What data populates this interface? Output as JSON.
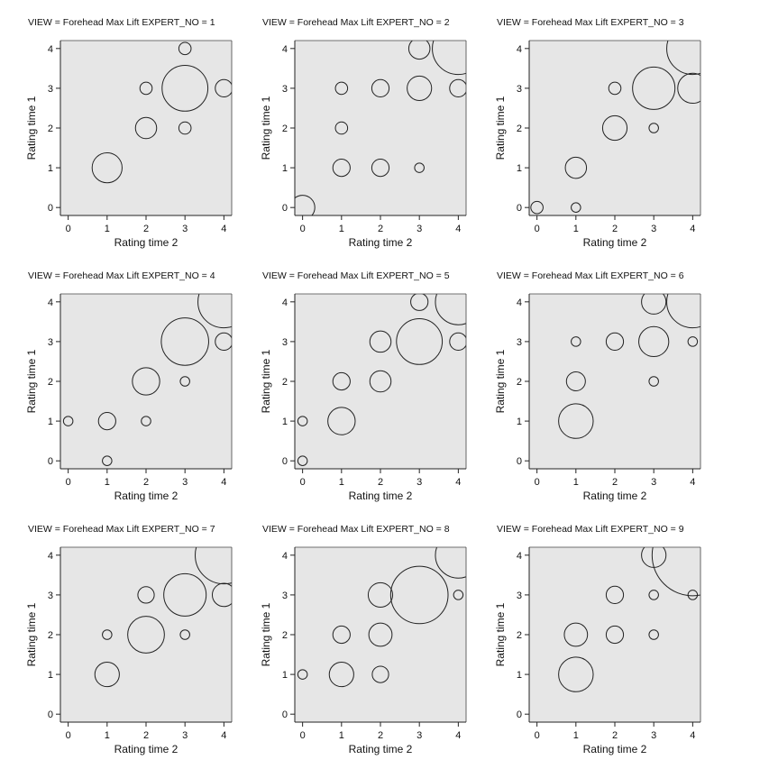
{
  "chart_data": [
    {
      "type": "scatter",
      "title": "VIEW = Forehead Max Lift EXPERT_NO = 1",
      "xlabel": "Rating time 2",
      "ylabel": "Rating time 1",
      "xlim": [
        -0.2,
        4.2
      ],
      "ylim": [
        -0.2,
        4.2
      ],
      "xticks": [
        "0",
        "1",
        "2",
        "3",
        "4"
      ],
      "yticks": [
        "0",
        "1",
        "2",
        "3",
        "4"
      ],
      "points": [
        {
          "x": 1,
          "y": 1,
          "size": 3
        },
        {
          "x": 2,
          "y": 2,
          "size": 1.5
        },
        {
          "x": 2,
          "y": 3,
          "size": 0.5
        },
        {
          "x": 3,
          "y": 2,
          "size": 0.5
        },
        {
          "x": 3,
          "y": 3,
          "size": 7
        },
        {
          "x": 3,
          "y": 4,
          "size": 0.5
        },
        {
          "x": 4,
          "y": 3,
          "size": 1
        }
      ]
    },
    {
      "type": "scatter",
      "title": "VIEW = Forehead Max Lift EXPERT_NO = 2",
      "xlabel": "Rating time 2",
      "ylabel": "Rating time 1",
      "xlim": [
        -0.2,
        4.2
      ],
      "ylim": [
        -0.2,
        4.2
      ],
      "xticks": [
        "0",
        "1",
        "2",
        "3",
        "4"
      ],
      "yticks": [
        "0",
        "1",
        "2",
        "3",
        "4"
      ],
      "points": [
        {
          "x": 0,
          "y": 0,
          "size": 2
        },
        {
          "x": 1,
          "y": 1,
          "size": 1
        },
        {
          "x": 1,
          "y": 2,
          "size": 0.5
        },
        {
          "x": 1,
          "y": 3,
          "size": 0.5
        },
        {
          "x": 2,
          "y": 1,
          "size": 1
        },
        {
          "x": 2,
          "y": 3,
          "size": 1
        },
        {
          "x": 3,
          "y": 1,
          "size": 0.3
        },
        {
          "x": 3,
          "y": 3,
          "size": 2
        },
        {
          "x": 3,
          "y": 4,
          "size": 1.5
        },
        {
          "x": 4,
          "y": 3,
          "size": 1
        },
        {
          "x": 4,
          "y": 4,
          "size": 9
        }
      ]
    },
    {
      "type": "scatter",
      "title": "VIEW = Forehead Max Lift EXPERT_NO = 3",
      "xlabel": "Rating time 2",
      "ylabel": "Rating time 1",
      "xlim": [
        -0.2,
        4.2
      ],
      "ylim": [
        -0.2,
        4.2
      ],
      "xticks": [
        "0",
        "1",
        "2",
        "3",
        "4"
      ],
      "yticks": [
        "0",
        "1",
        "2",
        "3",
        "4"
      ],
      "points": [
        {
          "x": 0,
          "y": 0,
          "size": 0.5
        },
        {
          "x": 1,
          "y": 0,
          "size": 0.3
        },
        {
          "x": 1,
          "y": 1,
          "size": 1.5
        },
        {
          "x": 2,
          "y": 2,
          "size": 2
        },
        {
          "x": 2,
          "y": 3,
          "size": 0.5
        },
        {
          "x": 3,
          "y": 2,
          "size": 0.3
        },
        {
          "x": 3,
          "y": 3,
          "size": 6
        },
        {
          "x": 4,
          "y": 3,
          "size": 3
        },
        {
          "x": 4,
          "y": 4,
          "size": 9
        }
      ]
    },
    {
      "type": "scatter",
      "title": "VIEW = Forehead Max Lift EXPERT_NO = 4",
      "xlabel": "Rating time 2",
      "ylabel": "Rating time 1",
      "xlim": [
        -0.2,
        4.2
      ],
      "ylim": [
        -0.2,
        4.2
      ],
      "xticks": [
        "0",
        "1",
        "2",
        "3",
        "4"
      ],
      "yticks": [
        "0",
        "1",
        "2",
        "3",
        "4"
      ],
      "points": [
        {
          "x": 0,
          "y": 1,
          "size": 0.3
        },
        {
          "x": 1,
          "y": 0,
          "size": 0.3
        },
        {
          "x": 1,
          "y": 1,
          "size": 1
        },
        {
          "x": 2,
          "y": 1,
          "size": 0.3
        },
        {
          "x": 2,
          "y": 2,
          "size": 2.5
        },
        {
          "x": 3,
          "y": 2,
          "size": 0.3
        },
        {
          "x": 3,
          "y": 3,
          "size": 7.5
        },
        {
          "x": 4,
          "y": 3,
          "size": 1
        },
        {
          "x": 4,
          "y": 4,
          "size": 9
        }
      ]
    },
    {
      "type": "scatter",
      "title": "VIEW = Forehead Max Lift EXPERT_NO = 5",
      "xlabel": "Rating time 2",
      "ylabel": "Rating time 1",
      "xlim": [
        -0.2,
        4.2
      ],
      "ylim": [
        -0.2,
        4.2
      ],
      "xticks": [
        "0",
        "1",
        "2",
        "3",
        "4"
      ],
      "yticks": [
        "0",
        "1",
        "2",
        "3",
        "4"
      ],
      "points": [
        {
          "x": 0,
          "y": 0,
          "size": 0.3
        },
        {
          "x": 0,
          "y": 1,
          "size": 0.3
        },
        {
          "x": 1,
          "y": 1,
          "size": 2.5
        },
        {
          "x": 1,
          "y": 2,
          "size": 1
        },
        {
          "x": 2,
          "y": 2,
          "size": 1.5
        },
        {
          "x": 2,
          "y": 3,
          "size": 1.5
        },
        {
          "x": 3,
          "y": 3,
          "size": 7
        },
        {
          "x": 3,
          "y": 4,
          "size": 1
        },
        {
          "x": 4,
          "y": 3,
          "size": 1
        },
        {
          "x": 4,
          "y": 4,
          "size": 7
        }
      ]
    },
    {
      "type": "scatter",
      "title": "VIEW = Forehead Max Lift EXPERT_NO = 6",
      "xlabel": "Rating time 2",
      "ylabel": "Rating time 1",
      "xlim": [
        -0.2,
        4.2
      ],
      "ylim": [
        -0.2,
        4.2
      ],
      "xticks": [
        "0",
        "1",
        "2",
        "3",
        "4"
      ],
      "yticks": [
        "0",
        "1",
        "2",
        "3",
        "4"
      ],
      "points": [
        {
          "x": 1,
          "y": 1,
          "size": 4
        },
        {
          "x": 1,
          "y": 2,
          "size": 1.2
        },
        {
          "x": 1,
          "y": 3,
          "size": 0.3
        },
        {
          "x": 2,
          "y": 3,
          "size": 1
        },
        {
          "x": 3,
          "y": 2,
          "size": 0.3
        },
        {
          "x": 3,
          "y": 3,
          "size": 3
        },
        {
          "x": 3,
          "y": 4,
          "size": 2
        },
        {
          "x": 4,
          "y": 3,
          "size": 0.3
        },
        {
          "x": 4,
          "y": 4,
          "size": 9
        }
      ]
    },
    {
      "type": "scatter",
      "title": "VIEW = Forehead Max Lift EXPERT_NO = 7",
      "xlabel": "Rating time 2",
      "ylabel": "Rating time 1",
      "xlim": [
        -0.2,
        4.2
      ],
      "ylim": [
        -0.2,
        4.2
      ],
      "xticks": [
        "0",
        "1",
        "2",
        "3",
        "4"
      ],
      "yticks": [
        "0",
        "1",
        "2",
        "3",
        "4"
      ],
      "points": [
        {
          "x": 1,
          "y": 1,
          "size": 2
        },
        {
          "x": 1,
          "y": 2,
          "size": 0.3
        },
        {
          "x": 2,
          "y": 2,
          "size": 4.5
        },
        {
          "x": 2,
          "y": 3,
          "size": 0.9
        },
        {
          "x": 3,
          "y": 2,
          "size": 0.3
        },
        {
          "x": 3,
          "y": 3,
          "size": 6
        },
        {
          "x": 4,
          "y": 3,
          "size": 1.8
        },
        {
          "x": 4,
          "y": 4,
          "size": 11
        }
      ]
    },
    {
      "type": "scatter",
      "title": "VIEW = Forehead Max Lift EXPERT_NO = 8",
      "xlabel": "Rating time 2",
      "ylabel": "Rating time 1",
      "xlim": [
        -0.2,
        4.2
      ],
      "ylim": [
        -0.2,
        4.2
      ],
      "xticks": [
        "0",
        "1",
        "2",
        "3",
        "4"
      ],
      "yticks": [
        "0",
        "1",
        "2",
        "3",
        "4"
      ],
      "points": [
        {
          "x": 0,
          "y": 1,
          "size": 0.3
        },
        {
          "x": 1,
          "y": 1,
          "size": 2
        },
        {
          "x": 1,
          "y": 2,
          "size": 1
        },
        {
          "x": 2,
          "y": 1,
          "size": 0.9
        },
        {
          "x": 2,
          "y": 2,
          "size": 1.8
        },
        {
          "x": 2,
          "y": 3,
          "size": 2
        },
        {
          "x": 3,
          "y": 3,
          "size": 11
        },
        {
          "x": 4,
          "y": 3,
          "size": 0.3
        },
        {
          "x": 4,
          "y": 4,
          "size": 7
        }
      ]
    },
    {
      "type": "scatter",
      "title": "VIEW = Forehead Max Lift EXPERT_NO = 9",
      "xlabel": "Rating time 2",
      "ylabel": "Rating time 1",
      "xlim": [
        -0.2,
        4.2
      ],
      "ylim": [
        -0.2,
        4.2
      ],
      "xticks": [
        "0",
        "1",
        "2",
        "3",
        "4"
      ],
      "yticks": [
        "0",
        "1",
        "2",
        "3",
        "4"
      ],
      "points": [
        {
          "x": 1,
          "y": 1,
          "size": 4
        },
        {
          "x": 1,
          "y": 2,
          "size": 1.8
        },
        {
          "x": 2,
          "y": 2,
          "size": 1
        },
        {
          "x": 2,
          "y": 3,
          "size": 1
        },
        {
          "x": 3,
          "y": 2,
          "size": 0.3
        },
        {
          "x": 3,
          "y": 3,
          "size": 0.3
        },
        {
          "x": 3,
          "y": 4,
          "size": 2
        },
        {
          "x": 4,
          "y": 3,
          "size": 0.3
        },
        {
          "x": 4,
          "y": 4,
          "size": 22
        }
      ]
    }
  ]
}
